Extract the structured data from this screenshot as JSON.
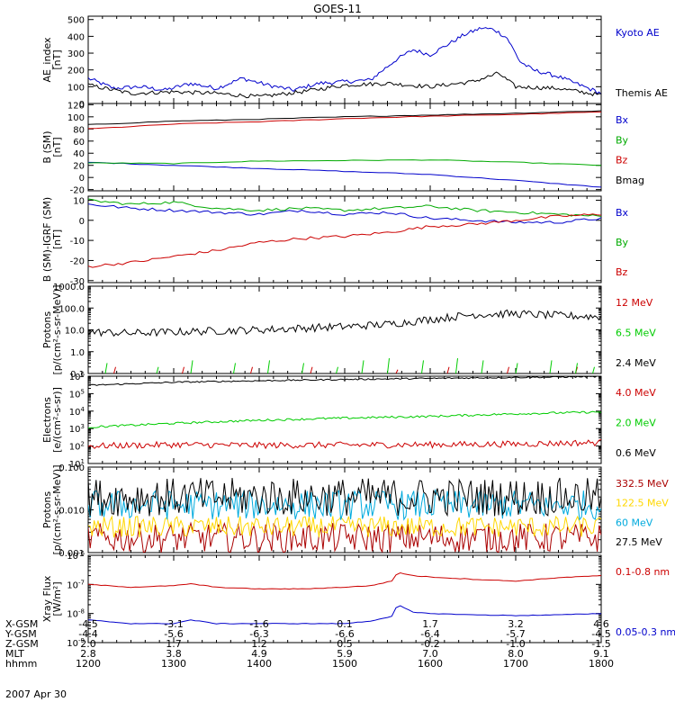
{
  "title": "GOES-11",
  "date": "2007 Apr 30",
  "panels": [
    {
      "id": "ae",
      "ylabel": [
        "AE_index",
        "[nT]"
      ],
      "ylim": [
        0,
        520
      ],
      "scale": "linear",
      "yticks": [
        {
          "v": 0,
          "label": "0"
        },
        {
          "v": 100,
          "label": "100"
        },
        {
          "v": 200,
          "label": "200"
        },
        {
          "v": 300,
          "label": "300"
        },
        {
          "v": 400,
          "label": "400"
        },
        {
          "v": 500,
          "label": "500"
        }
      ],
      "legend": [
        {
          "label": "Kyoto AE",
          "color": "#0000cc"
        },
        {
          "label": "Themis AE",
          "color": "#000000"
        }
      ]
    },
    {
      "id": "bsm",
      "ylabel": [
        "B (SM)",
        "[nT]"
      ],
      "ylim": [
        -22,
        122
      ],
      "scale": "linear",
      "yticks": [
        {
          "v": -20,
          "label": "-20"
        },
        {
          "v": 0,
          "label": "0"
        },
        {
          "v": 20,
          "label": "20"
        },
        {
          "v": 40,
          "label": "40"
        },
        {
          "v": 60,
          "label": "60"
        },
        {
          "v": 80,
          "label": "80"
        },
        {
          "v": 100,
          "label": "100"
        },
        {
          "v": 120,
          "label": "120"
        }
      ],
      "legend": [
        {
          "label": "Bx",
          "color": "#0000cc"
        },
        {
          "label": "By",
          "color": "#00aa00"
        },
        {
          "label": "Bz",
          "color": "#cc0000"
        },
        {
          "label": "Bmag",
          "color": "#000000"
        }
      ]
    },
    {
      "id": "bdiff",
      "ylabel": [
        "B (SM)-IGRF (SM)",
        "[nT]"
      ],
      "ylim": [
        -31,
        12
      ],
      "scale": "linear",
      "yticks": [
        {
          "v": -30,
          "label": "-30"
        },
        {
          "v": -20,
          "label": "-20"
        },
        {
          "v": -10,
          "label": "-10"
        },
        {
          "v": 0,
          "label": "0"
        },
        {
          "v": 10,
          "label": "10"
        }
      ],
      "legend": [
        {
          "label": "Bx",
          "color": "#0000cc"
        },
        {
          "label": "By",
          "color": "#00aa00"
        },
        {
          "label": "Bz",
          "color": "#cc0000"
        }
      ]
    },
    {
      "id": "protons_hi",
      "ylabel": [
        "Protons",
        "[p/(cm²-s-sr-MeV)]"
      ],
      "ylim": [
        0.1,
        1000
      ],
      "scale": "log",
      "yticks": [
        {
          "v": 0.1,
          "label": "0.1"
        },
        {
          "v": 1,
          "label": "1.0"
        },
        {
          "v": 10,
          "label": "10.0"
        },
        {
          "v": 100,
          "label": "100.0"
        },
        {
          "v": 1000,
          "label": "1000.0"
        }
      ],
      "legend": [
        {
          "label": "12 MeV",
          "color": "#cc0000"
        },
        {
          "label": "6.5 MeV",
          "color": "#00cc00"
        },
        {
          "label": "2.4 MeV",
          "color": "#000000"
        }
      ]
    },
    {
      "id": "electrons",
      "ylabel": [
        "Electrons",
        "[e/(cm²-s-sr)]"
      ],
      "ylim": [
        10,
        1000000
      ],
      "scale": "log",
      "yticks": [
        {
          "v": 10,
          "base": "10",
          "exp": "1"
        },
        {
          "v": 100,
          "base": "10",
          "exp": "2"
        },
        {
          "v": 1000,
          "base": "10",
          "exp": "3"
        },
        {
          "v": 10000,
          "base": "10",
          "exp": "4"
        },
        {
          "v": 100000,
          "base": "10",
          "exp": "5"
        },
        {
          "v": 1000000,
          "base": "10",
          "exp": "6"
        }
      ],
      "legend": [
        {
          "label": "4.0 MeV",
          "color": "#cc0000"
        },
        {
          "label": "2.0 MeV",
          "color": "#00cc00"
        },
        {
          "label": "0.6 MeV",
          "color": "#000000"
        }
      ]
    },
    {
      "id": "protons_lo",
      "ylabel": [
        "Protons",
        "[p/(cm²-s-sr-MeV)]"
      ],
      "ylim": [
        0.001,
        0.1
      ],
      "scale": "log",
      "yticks": [
        {
          "v": 0.001,
          "label": "0.001"
        },
        {
          "v": 0.01,
          "label": "0.010"
        },
        {
          "v": 0.1,
          "label": "0.100"
        }
      ],
      "legend": [
        {
          "label": "332.5 MeV",
          "color": "#aa0000"
        },
        {
          "label": "122.5 MeV",
          "color": "#ffd700"
        },
        {
          "label": "60 MeV",
          "color": "#00aadd"
        },
        {
          "label": "27.5 MeV",
          "color": "#000000"
        }
      ]
    },
    {
      "id": "xray",
      "ylabel": [
        "Xray Flux",
        "[W/m²]"
      ],
      "ylim": [
        1e-09,
        1e-06
      ],
      "scale": "log",
      "yticks": [
        {
          "v": 1e-09,
          "base": "10",
          "exp": "-9"
        },
        {
          "v": 1e-08,
          "base": "10",
          "exp": "-8"
        },
        {
          "v": 1e-07,
          "base": "10",
          "exp": "-7"
        },
        {
          "v": 1e-06,
          "base": "10",
          "exp": "-6"
        }
      ],
      "legend": [
        {
          "label": "0.1-0.8 nm",
          "color": "#cc0000"
        },
        {
          "label": "0.05-0.3 nm",
          "color": "#0000cc"
        }
      ]
    }
  ],
  "orbit": {
    "rows": [
      {
        "name": "X-GSM",
        "values": [
          "-4.5",
          "-3.1",
          "-1.6",
          "0.1",
          "1.7",
          "3.2",
          "4.6"
        ]
      },
      {
        "name": "Y-GSM",
        "values": [
          "-4.4",
          "-5.6",
          "-6.3",
          "-6.6",
          "-6.4",
          "-5.7",
          "-4.5"
        ]
      },
      {
        "name": "Z-GSM",
        "values": [
          "2.0",
          "1.7",
          "1.2",
          "0.5",
          "-0.2",
          "-1.0",
          "-1.5"
        ]
      },
      {
        "name": "MLT",
        "values": [
          "2.8",
          "3.8",
          "4.9",
          "5.9",
          "7.0",
          "8.0",
          "9.1"
        ]
      },
      {
        "name": "hhmm",
        "values": [
          "1200",
          "1300",
          "1400",
          "1500",
          "1600",
          "1700",
          "1800"
        ]
      }
    ]
  },
  "chart_data": {
    "type": "line",
    "x_unit": "UT hours",
    "x_range": [
      12,
      18
    ],
    "panels": [
      {
        "id": "ae",
        "series": [
          {
            "name": "Kyoto AE",
            "color": "#0000cc",
            "x": [
              12,
              12.3,
              12.6,
              12.9,
              13.2,
              13.5,
              13.8,
              14.1,
              14.4,
              14.7,
              15.0,
              15.3,
              15.6,
              15.8,
              16.0,
              16.2,
              16.4,
              16.6,
              16.75,
              16.9,
              17.05,
              17.2,
              17.5,
              17.8,
              18
            ],
            "y": [
              150,
              90,
              100,
              80,
              120,
              90,
              150,
              110,
              80,
              120,
              130,
              140,
              260,
              320,
              290,
              350,
              410,
              450,
              440,
              390,
              250,
              200,
              160,
              100,
              60
            ]
          },
          {
            "name": "Themis AE",
            "color": "#000000",
            "x": [
              12,
              12.5,
              13,
              13.5,
              14,
              14.5,
              15,
              15.5,
              16,
              16.5,
              16.8,
              17,
              17.5,
              18
            ],
            "y": [
              110,
              60,
              70,
              60,
              40,
              70,
              110,
              120,
              100,
              130,
              180,
              100,
              90,
              50
            ]
          }
        ]
      },
      {
        "id": "bsm",
        "series": [
          {
            "name": "Bx",
            "color": "#0000cc",
            "x": [
              12,
              13,
              14,
              15,
              16,
              17,
              18
            ],
            "y": [
              25,
              20,
              15,
              10,
              5,
              -5,
              -16
            ]
          },
          {
            "name": "By",
            "color": "#00aa00",
            "x": [
              12,
              13,
              14,
              15,
              16,
              17,
              18
            ],
            "y": [
              24,
              23,
              27,
              28,
              29,
              25,
              20
            ]
          },
          {
            "name": "Bz",
            "color": "#cc0000",
            "x": [
              12,
              13,
              14,
              15,
              16,
              17,
              18
            ],
            "y": [
              80,
              88,
              92,
              97,
              101,
              104,
              108
            ]
          },
          {
            "name": "Bmag",
            "color": "#000000",
            "x": [
              12,
              13,
              14,
              15,
              16,
              17,
              18
            ],
            "y": [
              87,
              93,
              96,
              100,
              103,
              106,
              110
            ]
          }
        ]
      },
      {
        "id": "bdiff",
        "series": [
          {
            "name": "Bx",
            "color": "#0000cc",
            "x": [
              12,
              12.5,
              13,
              13.5,
              14,
              14.5,
              15,
              15.5,
              16,
              16.5,
              17,
              17.5,
              18
            ],
            "y": [
              8,
              6,
              5,
              4,
              3,
              5,
              3,
              4,
              1,
              0,
              -1,
              -1,
              1
            ]
          },
          {
            "name": "By",
            "color": "#00aa00",
            "x": [
              12,
              12.5,
              13,
              13.5,
              14,
              14.5,
              15,
              15.5,
              16,
              16.5,
              17,
              17.5,
              18
            ],
            "y": [
              10,
              8,
              9,
              6,
              5,
              6,
              5,
              6,
              7,
              5,
              4,
              3,
              2
            ]
          },
          {
            "name": "Bz",
            "color": "#cc0000",
            "x": [
              12,
              12.5,
              13,
              13.5,
              14,
              14.5,
              15,
              15.5,
              16,
              16.5,
              17,
              17.5,
              18
            ],
            "y": [
              -23,
              -21,
              -18,
              -15,
              -11,
              -9,
              -8,
              -6,
              -3,
              -2,
              0,
              2,
              3
            ]
          }
        ]
      },
      {
        "id": "protons_hi",
        "series": [
          {
            "name": "12 MeV",
            "color": "#cc0000",
            "x": [
              12.3,
              13.1,
              13.9,
              14.6,
              15.6,
              16.2,
              16.9,
              17.7
            ],
            "y": [
              0.2,
              0.2,
              0.2,
              0.2,
              0.15,
              0.2,
              0.2,
              0.2
            ],
            "style": "spikes"
          },
          {
            "name": "6.5 MeV",
            "color": "#00cc00",
            "x": [
              12.2,
              12.8,
              13.2,
              13.7,
              14.1,
              14.5,
              14.9,
              15.2,
              15.5,
              15.9,
              16.3,
              16.6,
              17.0,
              17.4,
              17.7,
              17.9
            ],
            "y": [
              0.3,
              0.2,
              0.4,
              0.3,
              0.4,
              0.3,
              0.2,
              0.4,
              0.5,
              0.4,
              0.5,
              0.4,
              0.3,
              0.4,
              0.3,
              0.2
            ],
            "style": "spikes"
          },
          {
            "name": "2.4 MeV",
            "color": "#000000",
            "x": [
              12,
              12.5,
              13,
              13.5,
              14,
              14.5,
              15,
              15.5,
              16,
              16.5,
              17,
              17.5,
              18
            ],
            "y": [
              8,
              7,
              8,
              9,
              10,
              12,
              14,
              18,
              30,
              50,
              55,
              45,
              40
            ]
          }
        ]
      },
      {
        "id": "electrons",
        "series": [
          {
            "name": "4.0 MeV",
            "color": "#cc0000",
            "x": [
              12,
              13,
              14,
              15,
              16,
              17,
              18
            ],
            "y": [
              100,
              120,
              110,
              115,
              120,
              130,
              160
            ]
          },
          {
            "name": "2.0 MeV",
            "color": "#00cc00",
            "x": [
              12,
              13,
              14,
              15,
              16,
              17,
              18
            ],
            "y": [
              1200,
              2000,
              3000,
              4000,
              5000,
              7000,
              9000
            ]
          },
          {
            "name": "0.6 MeV",
            "color": "#000000",
            "x": [
              12,
              13,
              14,
              15,
              16,
              17,
              18
            ],
            "y": [
              300000,
              450000,
              550000,
              650000,
              750000,
              850000,
              950000
            ]
          }
        ]
      },
      {
        "id": "protons_lo",
        "series": [
          {
            "name": "332.5 MeV",
            "color": "#aa0000",
            "x": [
              12,
              18
            ],
            "y": [
              0.0022,
              0.0022
            ]
          },
          {
            "name": "122.5 MeV",
            "color": "#ffd700",
            "x": [
              12,
              18
            ],
            "y": [
              0.004,
              0.004
            ]
          },
          {
            "name": "60 MeV",
            "color": "#00aadd",
            "x": [
              12,
              18
            ],
            "y": [
              0.013,
              0.013
            ]
          },
          {
            "name": "27.5 MeV",
            "color": "#000000",
            "x": [
              12,
              18
            ],
            "y": [
              0.02,
              0.02
            ]
          }
        ]
      },
      {
        "id": "xray",
        "series": [
          {
            "name": "0.1-0.8 nm",
            "color": "#cc0000",
            "x": [
              12,
              12.5,
              13,
              13.2,
              13.5,
              14,
              14.5,
              15,
              15.3,
              15.55,
              15.62,
              15.8,
              16.0,
              16.5,
              17,
              17.5,
              18
            ],
            "y": [
              1e-07,
              8e-08,
              9e-08,
              1.05e-07,
              8e-08,
              7e-08,
              7e-08,
              8e-08,
              9e-08,
              1.3e-07,
              2.6e-07,
              2e-07,
              1.8e-07,
              1.5e-07,
              1.3e-07,
              1.7e-07,
              2e-07
            ]
          },
          {
            "name": "0.05-0.3 nm",
            "color": "#0000cc",
            "x": [
              12,
              12.5,
              13,
              13.2,
              13.5,
              14,
              14.5,
              15,
              15.3,
              15.55,
              15.62,
              15.8,
              16.0,
              16.5,
              17,
              17.5,
              18
            ],
            "y": [
              6e-09,
              4.5e-09,
              4.5e-09,
              6e-09,
              4.5e-09,
              4.5e-09,
              4.5e-09,
              4.5e-09,
              5.5e-09,
              8e-09,
              2e-08,
              1.1e-08,
              1e-08,
              9e-09,
              8.5e-09,
              9e-09,
              1e-08
            ]
          }
        ]
      }
    ]
  }
}
